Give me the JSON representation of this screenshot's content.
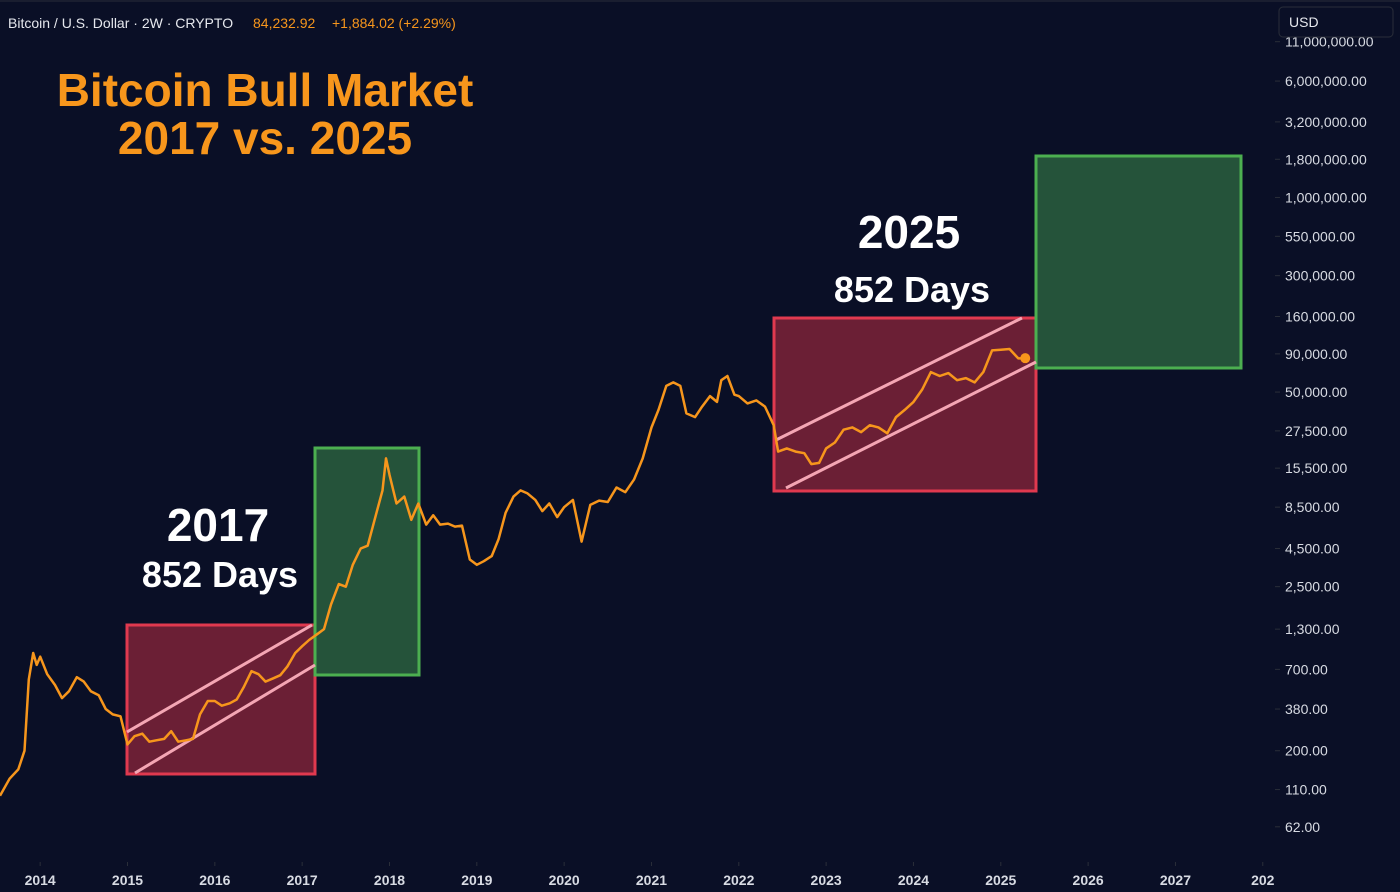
{
  "header": {
    "symbol": "Bitcoin / U.S. Dollar · 2W · CRYPTO",
    "price": "84,232.92",
    "change": "+1,884.02 (+2.29%)",
    "currency": "USD"
  },
  "chart_data": {
    "type": "line",
    "title": "Bitcoin Bull Market",
    "subtitle": "2017 vs. 2025",
    "annotations": [
      "2017",
      "852 Days",
      "2025",
      "852 Days"
    ],
    "log_scale": true,
    "grid": false,
    "xlim": [
      2013.54,
      2028.14
    ],
    "xticks": [
      2014,
      2015,
      2016,
      2017,
      2018,
      2019,
      2020,
      2021,
      2022,
      2023,
      2024,
      2025,
      2026,
      2027,
      {
        "value": 2028,
        "label": "202"
      }
    ],
    "ylim": [
      37.2,
      20900000
    ],
    "yticks": [
      {
        "value": 11000000,
        "label": "11,000,000.00"
      },
      {
        "value": 6000000,
        "label": "6,000,000.00"
      },
      {
        "value": 3200000,
        "label": "3,200,000.00"
      },
      {
        "value": 1800000,
        "label": "1,800,000.00"
      },
      {
        "value": 1000000,
        "label": "1,000,000.00"
      },
      {
        "value": 550000,
        "label": "550,000.00"
      },
      {
        "value": 300000,
        "label": "300,000.00"
      },
      {
        "value": 160000,
        "label": "160,000.00"
      },
      {
        "value": 90000,
        "label": "90,000.00"
      },
      {
        "value": 50000,
        "label": "50,000.00"
      },
      {
        "value": 27500,
        "label": "27,500.00"
      },
      {
        "value": 15500,
        "label": "15,500.00"
      },
      {
        "value": 8500,
        "label": "8,500.00"
      },
      {
        "value": 4500,
        "label": "4,500.00"
      },
      {
        "value": 2500,
        "label": "2,500.00"
      },
      {
        "value": 1300,
        "label": "1,300.00"
      },
      {
        "value": 700,
        "label": "700.00"
      },
      {
        "value": 380,
        "label": "380.00"
      },
      {
        "value": 200,
        "label": "200.00"
      },
      {
        "value": 110,
        "label": "110.00"
      },
      {
        "value": 62,
        "label": "62.00"
      }
    ],
    "series": [
      {
        "name": "BTCUSD",
        "color": "#f7961c",
        "x": [
          2013.54,
          2013.65,
          2013.75,
          2013.82,
          2013.87,
          2013.92,
          2013.96,
          2014.0,
          2014.08,
          2014.17,
          2014.25,
          2014.33,
          2014.42,
          2014.5,
          2014.58,
          2014.67,
          2014.75,
          2014.83,
          2014.92,
          2015.0,
          2015.08,
          2015.17,
          2015.25,
          2015.33,
          2015.42,
          2015.5,
          2015.58,
          2015.67,
          2015.75,
          2015.83,
          2015.92,
          2016.0,
          2016.08,
          2016.17,
          2016.25,
          2016.33,
          2016.42,
          2016.5,
          2016.58,
          2016.67,
          2016.75,
          2016.83,
          2016.92,
          2017.0,
          2017.08,
          2017.17,
          2017.25,
          2017.33,
          2017.42,
          2017.5,
          2017.58,
          2017.67,
          2017.75,
          2017.83,
          2017.92,
          2017.96,
          2018.0,
          2018.08,
          2018.17,
          2018.25,
          2018.33,
          2018.42,
          2018.5,
          2018.58,
          2018.67,
          2018.75,
          2018.83,
          2018.92,
          2019.0,
          2019.08,
          2019.17,
          2019.25,
          2019.33,
          2019.42,
          2019.5,
          2019.58,
          2019.67,
          2019.75,
          2019.83,
          2019.92,
          2020.0,
          2020.1,
          2020.2,
          2020.3,
          2020.4,
          2020.5,
          2020.6,
          2020.7,
          2020.8,
          2020.9,
          2021.0,
          2021.08,
          2021.17,
          2021.25,
          2021.33,
          2021.4,
          2021.5,
          2021.58,
          2021.67,
          2021.75,
          2021.8,
          2021.87,
          2021.95,
          2022.0,
          2022.1,
          2022.2,
          2022.3,
          2022.4,
          2022.45,
          2022.55,
          2022.65,
          2022.75,
          2022.83,
          2022.92,
          2023.0,
          2023.1,
          2023.2,
          2023.3,
          2023.4,
          2023.5,
          2023.6,
          2023.7,
          2023.8,
          2023.9,
          2024.0,
          2024.1,
          2024.2,
          2024.3,
          2024.4,
          2024.5,
          2024.6,
          2024.7,
          2024.8,
          2024.9,
          2025.0,
          2025.1,
          2025.2,
          2025.28
        ],
        "values": [
          100,
          130,
          150,
          200,
          600,
          900,
          750,
          850,
          650,
          550,
          450,
          500,
          620,
          580,
          500,
          470,
          380,
          350,
          340,
          220,
          250,
          260,
          230,
          235,
          240,
          270,
          230,
          235,
          240,
          350,
          430,
          430,
          400,
          415,
          440,
          530,
          680,
          650,
          580,
          610,
          640,
          730,
          900,
          1000,
          1100,
          1200,
          1300,
          1900,
          2600,
          2500,
          3500,
          4500,
          4700,
          7000,
          11000,
          18000,
          14000,
          9000,
          10000,
          7000,
          9000,
          6500,
          7500,
          6500,
          6600,
          6300,
          6400,
          3800,
          3500,
          3700,
          4000,
          5200,
          7800,
          10000,
          11000,
          10500,
          9500,
          8000,
          9000,
          7300,
          8500,
          9500,
          5000,
          8800,
          9400,
          9200,
          11500,
          10700,
          13000,
          18000,
          29000,
          38000,
          55000,
          58000,
          55000,
          36000,
          34000,
          40000,
          47000,
          43000,
          60000,
          64000,
          48000,
          47000,
          42000,
          44000,
          40000,
          30000,
          20000,
          21000,
          20000,
          19500,
          16500,
          16800,
          21000,
          23000,
          28000,
          29000,
          27000,
          30000,
          29000,
          26500,
          34000,
          38000,
          43000,
          52000,
          68000,
          64000,
          67000,
          60000,
          62000,
          58000,
          68000,
          95000,
          96000,
          97000,
          84000,
          84232.92
        ]
      }
    ]
  }
}
